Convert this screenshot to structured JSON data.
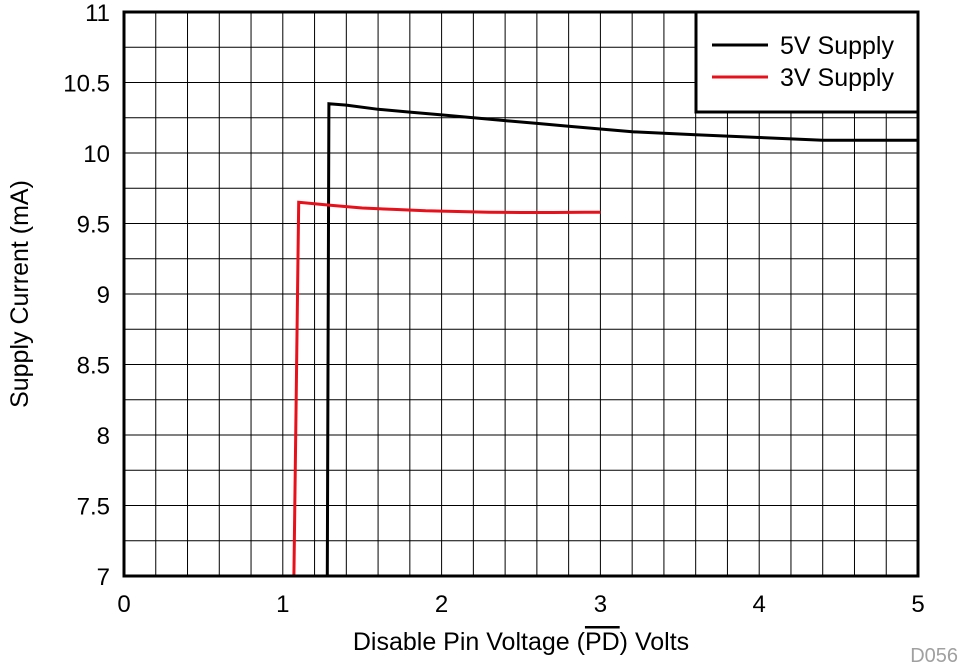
{
  "chart_data": {
    "type": "line",
    "xlabel_prefix": "Disable Pin Voltage (",
    "xlabel_overline": "PD",
    "xlabel_suffix": ") Volts",
    "ylabel": "Supply Current (mA)",
    "xlim": [
      0,
      5
    ],
    "ylim": [
      7,
      11
    ],
    "x_ticks": [
      "0",
      "1",
      "2",
      "3",
      "4",
      "5"
    ],
    "y_ticks": [
      "7",
      "7.5",
      "8",
      "8.5",
      "9",
      "9.5",
      "10",
      "10.5",
      "11"
    ],
    "grid": true,
    "legend_position": "top-right",
    "series": [
      {
        "name": "5V Supply",
        "color": "#000000",
        "points": [
          [
            1.28,
            7.0
          ],
          [
            1.29,
            10.35
          ],
          [
            1.4,
            10.34
          ],
          [
            1.6,
            10.31
          ],
          [
            1.8,
            10.29
          ],
          [
            2.0,
            10.27
          ],
          [
            2.2,
            10.25
          ],
          [
            2.4,
            10.23
          ],
          [
            2.6,
            10.21
          ],
          [
            2.8,
            10.19
          ],
          [
            3.0,
            10.17
          ],
          [
            3.2,
            10.15
          ],
          [
            3.4,
            10.14
          ],
          [
            3.6,
            10.13
          ],
          [
            3.8,
            10.12
          ],
          [
            4.0,
            10.11
          ],
          [
            4.2,
            10.1
          ],
          [
            4.4,
            10.09
          ],
          [
            4.6,
            10.09
          ],
          [
            4.8,
            10.09
          ],
          [
            5.0,
            10.09
          ]
        ]
      },
      {
        "name": "3V Supply",
        "color": "#e8101a",
        "points": [
          [
            1.07,
            7.0
          ],
          [
            1.1,
            9.65
          ],
          [
            1.3,
            9.63
          ],
          [
            1.5,
            9.61
          ],
          [
            1.7,
            9.6
          ],
          [
            1.9,
            9.59
          ],
          [
            2.1,
            9.585
          ],
          [
            2.3,
            9.58
          ],
          [
            2.5,
            9.578
          ],
          [
            2.7,
            9.578
          ],
          [
            2.9,
            9.58
          ],
          [
            3.0,
            9.58
          ]
        ]
      }
    ]
  },
  "watermark": "D056"
}
